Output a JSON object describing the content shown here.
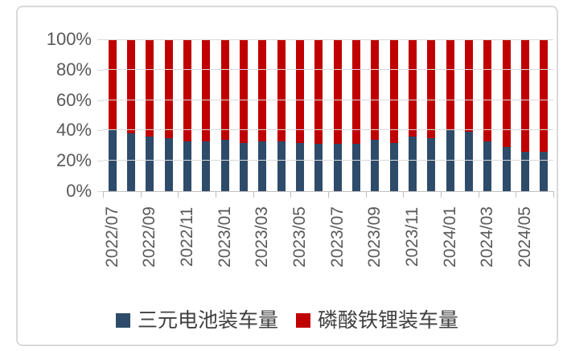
{
  "chart_data": {
    "type": "bar",
    "stacked": true,
    "stack_mode": "percent",
    "title": "",
    "xlabel": "",
    "ylabel": "",
    "grid": true,
    "legend_position": "bottom",
    "ylim": [
      0,
      100
    ],
    "yticks": [
      0,
      20,
      40,
      60,
      80,
      100
    ],
    "ytick_suffix": "%",
    "categories": [
      "2022/07",
      "2022/08",
      "2022/09",
      "2022/10",
      "2022/11",
      "2022/12",
      "2023/01",
      "2023/02",
      "2023/03",
      "2023/04",
      "2023/05",
      "2023/06",
      "2023/07",
      "2023/08",
      "2023/09",
      "2023/10",
      "2023/11",
      "2023/12",
      "2024/01",
      "2024/02",
      "2024/03",
      "2024/04",
      "2024/05",
      "2024/06"
    ],
    "xtick_labels": [
      "2022/07",
      "2022/09",
      "2022/11",
      "2023/01",
      "2023/03",
      "2023/05",
      "2023/07",
      "2023/09",
      "2023/11",
      "2024/01",
      "2024/03",
      "2024/05"
    ],
    "series": [
      {
        "name": "三元电池装车量",
        "color": "#2E4C6A",
        "values": [
          40,
          38,
          36,
          35,
          33,
          33,
          34,
          32,
          33,
          33,
          32,
          31,
          31,
          31,
          34,
          32,
          36,
          35,
          40,
          39,
          33,
          29,
          26,
          26
        ]
      },
      {
        "name": "磷酸铁锂装车量",
        "color": "#C00000",
        "values": [
          60,
          62,
          64,
          65,
          67,
          67,
          66,
          68,
          67,
          67,
          68,
          69,
          69,
          69,
          66,
          68,
          64,
          65,
          60,
          61,
          67,
          71,
          74,
          74
        ]
      }
    ]
  },
  "colors": {
    "background": "#FFFFFF",
    "frame_border": "#D9D9D9",
    "gridline": "#D9D9D9",
    "axis_line": "#BFBFBF",
    "tick_text": "#595959",
    "legend_text": "#404040"
  }
}
